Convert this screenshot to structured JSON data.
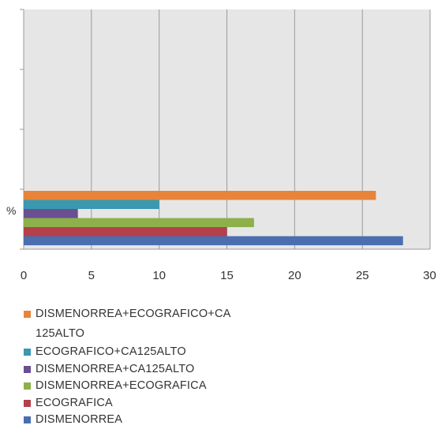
{
  "chart_data": {
    "type": "bar",
    "orientation": "horizontal",
    "categories": [
      "%"
    ],
    "xlim": [
      0,
      30
    ],
    "xticks": [
      0,
      5,
      10,
      15,
      20,
      25,
      30
    ],
    "grid": true,
    "legend_position": "bottom",
    "series": [
      {
        "name": "DISMENORREA",
        "values": [
          28
        ],
        "color": "#4a6eb0"
      },
      {
        "name": "ECOGRAFICA",
        "values": [
          15
        ],
        "color": "#b3404a"
      },
      {
        "name": "DISMENORREA+ECOGRAFICA",
        "values": [
          17
        ],
        "color": "#8db04a"
      },
      {
        "name": "DISMENORREA+CA125ALTO",
        "values": [
          4
        ],
        "color": "#6a4f91"
      },
      {
        "name": "ECOGRAFICO+CA125ALTO",
        "values": [
          10
        ],
        "color": "#3a98b0"
      },
      {
        "name": "DISMENORREA+ECOGRAFICO+CA 125ALTO",
        "values": [
          26
        ],
        "color": "#e8843a"
      }
    ]
  }
}
